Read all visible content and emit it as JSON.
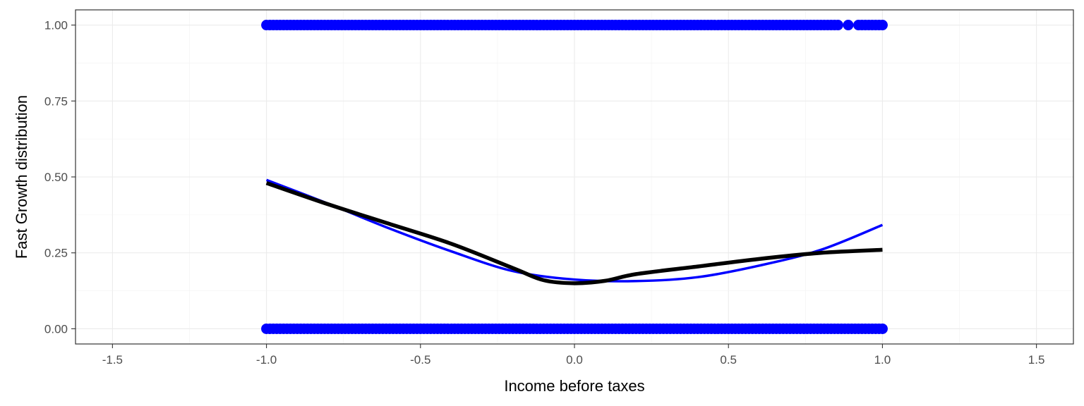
{
  "chart_data": {
    "type": "scatter",
    "title": "",
    "xlabel": "Income before taxes",
    "ylabel": "Fast Growth distribution",
    "xlim": [
      -1.62,
      1.62
    ],
    "ylim": [
      -0.05,
      1.05
    ],
    "x_ticks": [
      -1.5,
      -1.0,
      -0.5,
      0.0,
      0.5,
      1.0,
      1.5
    ],
    "x_tick_labels": [
      "-1.5",
      "-1.0",
      "-0.5",
      "0.0",
      "0.5",
      "1.0",
      "1.5"
    ],
    "y_ticks": [
      0.0,
      0.25,
      0.5,
      0.75,
      1.0
    ],
    "y_tick_labels": [
      "0.00",
      "0.25",
      "0.50",
      "0.75",
      "1.00"
    ],
    "grid": true,
    "theme": "bw",
    "points_color": "#0000ff",
    "point_bands": [
      {
        "y": 1.0,
        "x_from": -1.0,
        "x_to": 1.0
      },
      {
        "y": 0.0,
        "x_from": -1.0,
        "x_to": 1.0
      }
    ],
    "series": [
      {
        "type": "line",
        "color": "#0000ff",
        "x": [
          -1.0,
          -0.8,
          -0.6,
          -0.4,
          -0.2,
          0.0,
          0.2,
          0.4,
          0.6,
          0.8,
          1.0
        ],
        "y": [
          0.49,
          0.412,
          0.33,
          0.255,
          0.19,
          0.162,
          0.157,
          0.17,
          0.208,
          0.26,
          0.342
        ]
      },
      {
        "type": "line",
        "color": "#000000",
        "x": [
          -1.0,
          -0.8,
          -0.6,
          -0.4,
          -0.2,
          -0.1,
          0.0,
          0.1,
          0.2,
          0.4,
          0.6,
          0.8,
          1.0
        ],
        "y": [
          0.48,
          0.41,
          0.345,
          0.28,
          0.2,
          0.16,
          0.15,
          0.158,
          0.18,
          0.205,
          0.23,
          0.25,
          0.26
        ]
      }
    ]
  }
}
